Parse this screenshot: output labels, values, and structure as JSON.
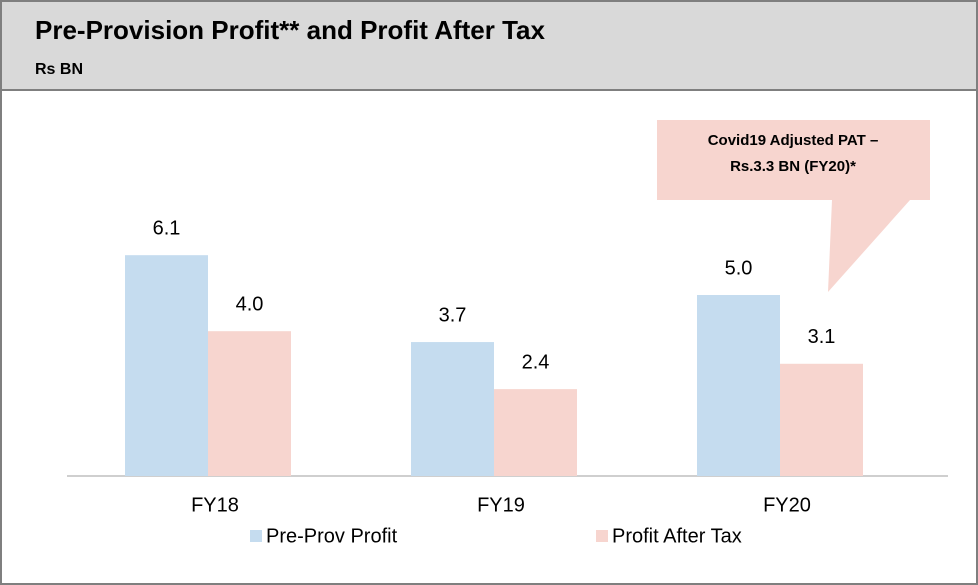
{
  "chart_data": {
    "type": "bar",
    "title": "Pre-Provision Profit** and Profit After Tax",
    "subtitle": "Rs BN",
    "categories": [
      "FY18",
      "FY19",
      "FY20"
    ],
    "series": [
      {
        "name": "Pre-Prov Profit",
        "color": "#c5dcef",
        "values": [
          6.1,
          3.7,
          5.0
        ],
        "value_labels": [
          "6.1",
          "3.7",
          "5.0"
        ]
      },
      {
        "name": "Profit After Tax",
        "color": "#f7d5cf",
        "values": [
          4.0,
          2.4,
          3.1
        ],
        "value_labels": [
          "4.0",
          "2.4",
          "3.1"
        ]
      }
    ],
    "annotation": [
      "Covid19 Adjusted PAT –",
      "Rs.3.3 BN (FY20)*"
    ],
    "legend": "bottom"
  }
}
